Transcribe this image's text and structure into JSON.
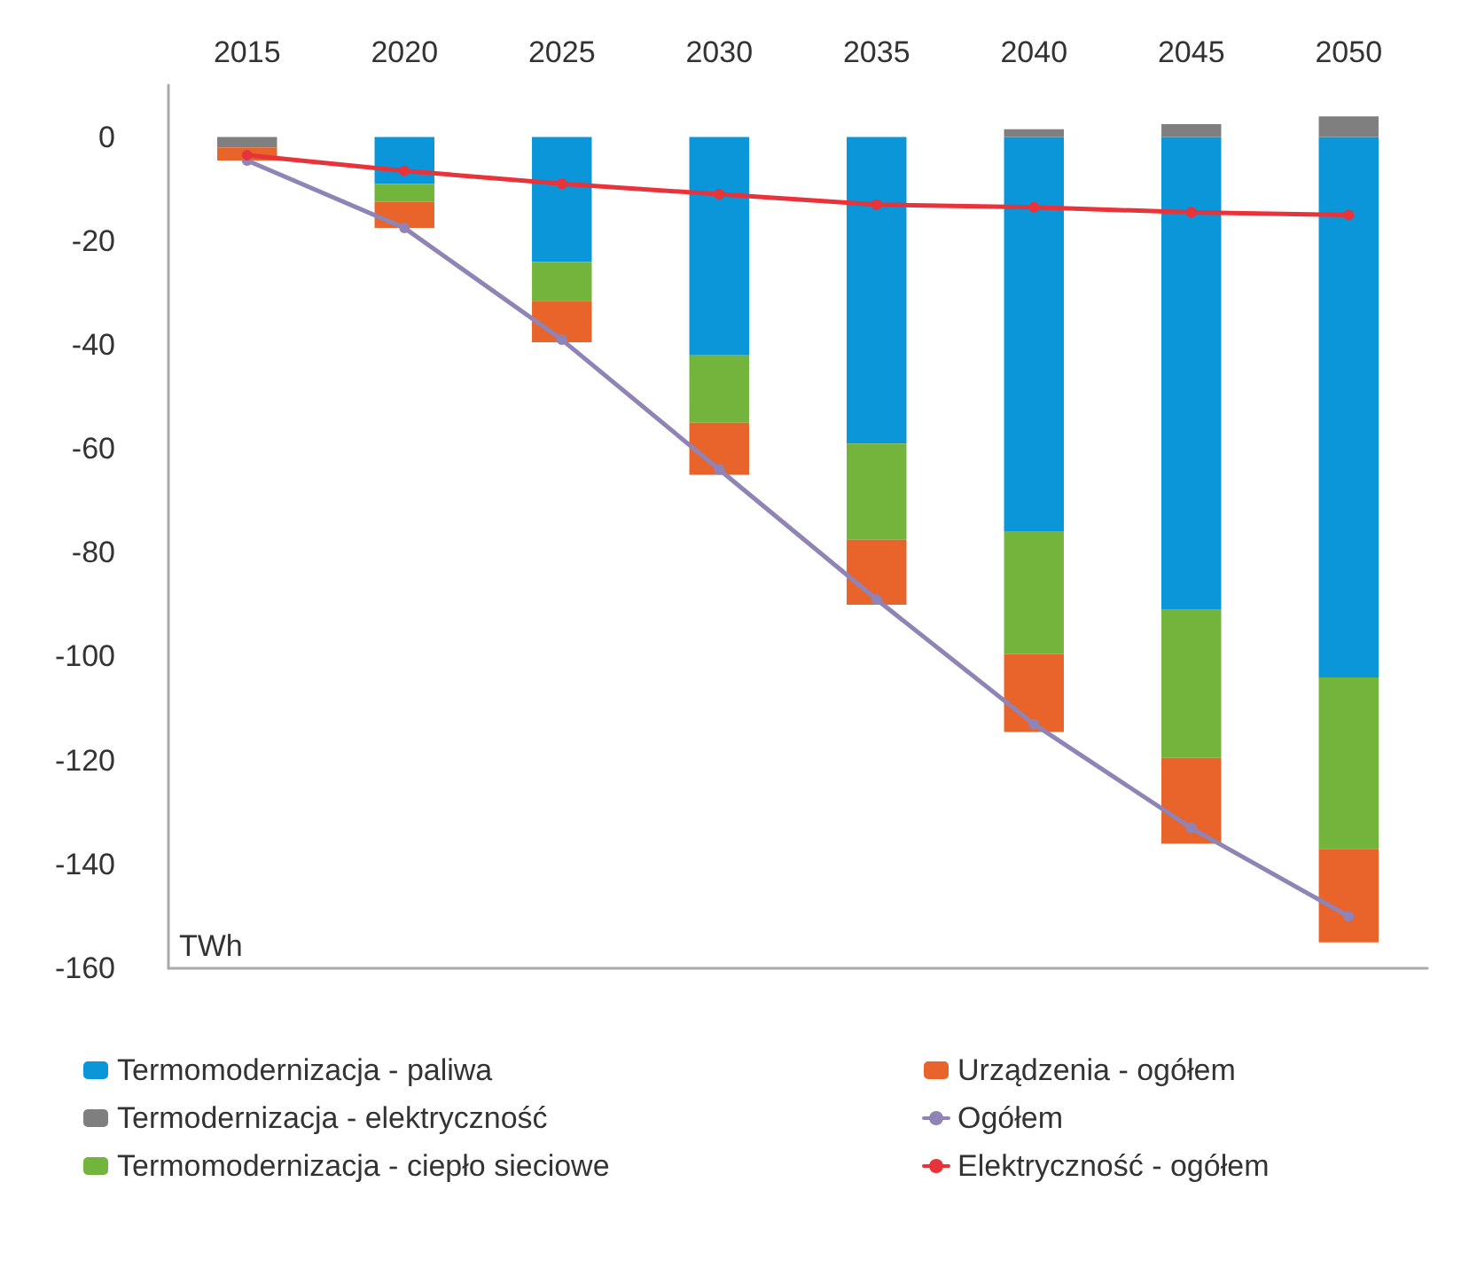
{
  "chart_data": {
    "type": "bar",
    "stacked": true,
    "ylabel": "TWh",
    "categories": [
      "2015",
      "2020",
      "2025",
      "2030",
      "2035",
      "2040",
      "2045",
      "2050"
    ],
    "series": [
      {
        "name": "Termomodernizacja - paliwa",
        "color": "#0a96d8",
        "values": [
          0,
          -9,
          -24,
          -42,
          -59,
          -76,
          -91,
          -104
        ]
      },
      {
        "name": "Termodernizacja - elektryczność",
        "color": "#7f7f7f",
        "values": [
          -2,
          0,
          0,
          0,
          0,
          1.5,
          2.5,
          4
        ]
      },
      {
        "name": "Termomodernizacja - ciepło sieciowe",
        "color": "#72b43c",
        "values": [
          0,
          -3.5,
          -7.5,
          -13,
          -18.5,
          -23.5,
          -28.5,
          -33
        ]
      },
      {
        "name": "Urządzenia - ogółem",
        "color": "#e8642a",
        "values": [
          -2.5,
          -5,
          -8,
          -10,
          -12.5,
          -15,
          -16.5,
          -18
        ]
      },
      {
        "name": "Ogółem",
        "type": "line",
        "color": "#8f84b5",
        "marker": "circle",
        "values": [
          -4.5,
          -17.5,
          -39,
          -64,
          -89,
          -113,
          -133,
          -150
        ]
      },
      {
        "name": "Elektryczność - ogółem",
        "type": "line",
        "color": "#e8333a",
        "marker": "circle",
        "values": [
          -3.5,
          -6.5,
          -9,
          -11,
          -13,
          -13.5,
          -14.5,
          -15
        ]
      }
    ],
    "ylim": [
      -160,
      10
    ],
    "yticks": [
      0,
      -20,
      -40,
      -60,
      -80,
      -100,
      -120,
      -140,
      -160
    ],
    "grid": false,
    "legend": "bottom"
  }
}
